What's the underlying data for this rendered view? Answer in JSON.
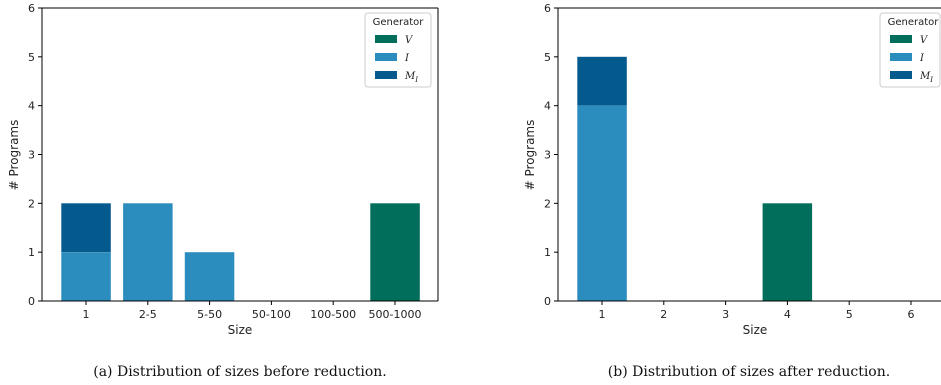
{
  "chart_data": [
    {
      "type": "bar",
      "stacked": true,
      "caption": "(a) Distribution of sizes before reduction.",
      "xlabel": "Size",
      "ylabel": "# Programs",
      "ylim": [
        0,
        6
      ],
      "yticks": [
        0,
        1,
        2,
        3,
        4,
        5,
        6
      ],
      "categories": [
        "1",
        "2-5",
        "5-50",
        "50-100",
        "100-500",
        "500-1000"
      ],
      "legend": {
        "title": "Generator",
        "placement": "top-right"
      },
      "series": [
        {
          "name": "V",
          "color": "#006e5a",
          "values": [
            0,
            0,
            0,
            0,
            0,
            2
          ]
        },
        {
          "name": "I",
          "color": "#2b8cbe",
          "values": [
            1,
            2,
            1,
            0,
            0,
            0
          ]
        },
        {
          "name": "M_I",
          "label": "M",
          "sub": "I",
          "color": "#045a8d",
          "values": [
            1,
            0,
            0,
            0,
            0,
            0
          ]
        }
      ]
    },
    {
      "type": "bar",
      "stacked": true,
      "caption": "(b) Distribution of sizes after reduction.",
      "xlabel": "Size",
      "ylabel": "# Programs",
      "ylim": [
        0,
        6
      ],
      "yticks": [
        0,
        1,
        2,
        3,
        4,
        5,
        6
      ],
      "categories": [
        "1",
        "2",
        "3",
        "4",
        "5",
        "6"
      ],
      "legend": {
        "title": "Generator",
        "placement": "top-right"
      },
      "series": [
        {
          "name": "V",
          "color": "#006e5a",
          "values": [
            0,
            0,
            0,
            2,
            0,
            0
          ]
        },
        {
          "name": "I",
          "color": "#2b8cbe",
          "values": [
            4,
            0,
            0,
            0,
            0,
            0
          ]
        },
        {
          "name": "M_I",
          "label": "M",
          "sub": "I",
          "color": "#045a8d",
          "values": [
            1,
            0,
            0,
            0,
            0,
            0
          ]
        }
      ]
    }
  ]
}
